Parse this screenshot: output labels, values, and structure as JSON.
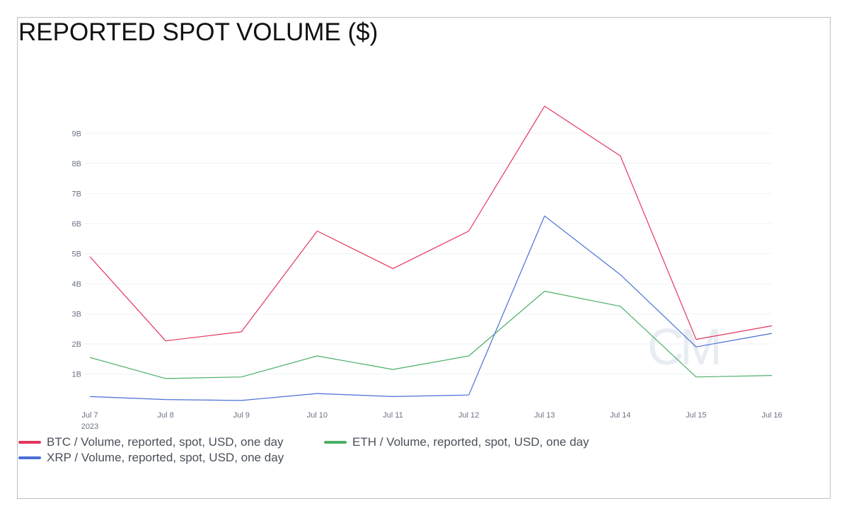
{
  "title": "REPORTED SPOT VOLUME ($)",
  "watermark": "CM",
  "chart_data": {
    "type": "line",
    "title": "REPORTED SPOT VOLUME ($)",
    "xlabel": "",
    "ylabel": "",
    "x": [
      "Jul 7",
      "Jul 8",
      "Jul 9",
      "Jul 10",
      "Jul 11",
      "Jul 12",
      "Jul 13",
      "Jul 14",
      "Jul 15",
      "Jul 16"
    ],
    "x_sublabel_first": "2023",
    "yticks": [
      1,
      2,
      3,
      4,
      5,
      6,
      7,
      8,
      9
    ],
    "ytick_labels": [
      "1B",
      "2B",
      "3B",
      "4B",
      "5B",
      "6B",
      "7B",
      "8B",
      "9B"
    ],
    "ylim": [
      0,
      9.9
    ],
    "grid": true,
    "legend_position": "bottom-left",
    "series": [
      {
        "name": "BTC / Volume, reported, spot, USD, one day",
        "color": "#e3365c",
        "values": [
          4.9,
          2.1,
          2.4,
          5.75,
          4.5,
          5.75,
          9.9,
          8.25,
          2.15,
          2.6
        ]
      },
      {
        "name": "ETH / Volume, reported, spot, USD, one day",
        "color": "#4caf68",
        "values": [
          1.55,
          0.85,
          0.9,
          1.6,
          1.15,
          1.6,
          3.75,
          3.25,
          0.9,
          0.95
        ]
      },
      {
        "name": "XRP / Volume, reported, spot, USD, one day",
        "color": "#4a6fd6",
        "values": [
          0.25,
          0.15,
          0.12,
          0.35,
          0.25,
          0.3,
          6.25,
          4.3,
          1.9,
          2.35
        ]
      }
    ]
  }
}
